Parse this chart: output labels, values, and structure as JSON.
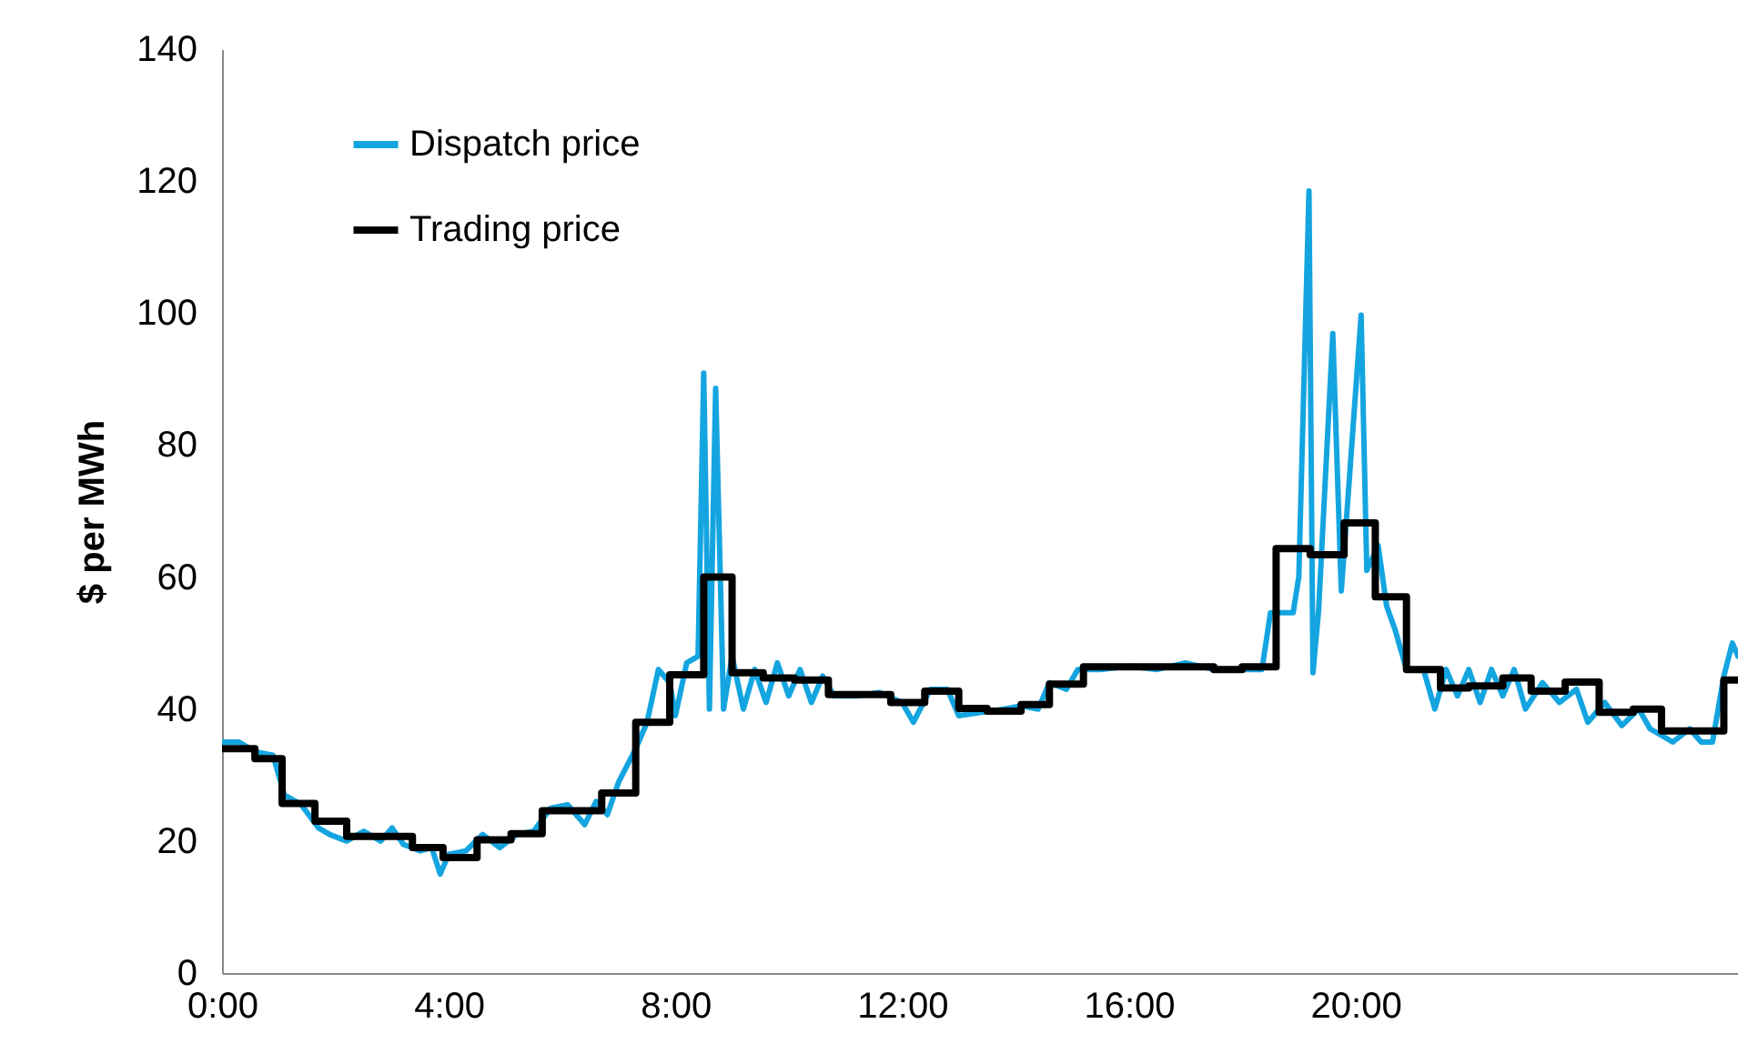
{
  "chart_data": {
    "type": "line",
    "ylabel": "$ per MWh",
    "xlim": [
      0,
      26.75
    ],
    "xticks": [
      {
        "value": 0,
        "label": "0:00"
      },
      {
        "value": 4,
        "label": "4:00"
      },
      {
        "value": 8,
        "label": "8:00"
      },
      {
        "value": 12,
        "label": "12:00"
      },
      {
        "value": 16,
        "label": "16:00"
      },
      {
        "value": 20,
        "label": "20:00"
      }
    ],
    "ylim": [
      0,
      140
    ],
    "yticks": [
      0,
      20,
      40,
      60,
      80,
      100,
      120,
      140
    ],
    "grid": false,
    "legend": "top left",
    "marker": "none",
    "series": [
      {
        "name": "Dispatch price",
        "color": "#14a5e0",
        "x": [
          0,
          0.3,
          0.6,
          0.9,
          1.1,
          1.4,
          1.7,
          1.9,
          2.2,
          2.5,
          2.8,
          3.0,
          3.2,
          3.5,
          3.7,
          3.85,
          4.0,
          4.3,
          4.6,
          4.9,
          5.2,
          5.5,
          5.8,
          6.1,
          6.4,
          6.6,
          6.8,
          7.0,
          7.3,
          7.5,
          7.7,
          7.9,
          8.0,
          8.2,
          8.4,
          8.5,
          8.6,
          8.71,
          8.85,
          9.0,
          9.2,
          9.4,
          9.6,
          9.8,
          10.0,
          10.2,
          10.4,
          10.6,
          10.8,
          11.2,
          11.6,
          12.0,
          12.2,
          12.5,
          12.8,
          13.0,
          13.4,
          13.8,
          14.1,
          14.4,
          14.6,
          14.9,
          15.1,
          15.5,
          16.0,
          16.5,
          17.0,
          17.5,
          18.0,
          18.35,
          18.5,
          18.9,
          19.0,
          19.18,
          19.25,
          19.35,
          19.6,
          19.75,
          20.1,
          20.2,
          20.4,
          20.55,
          20.7,
          20.9,
          21.2,
          21.4,
          21.6,
          21.8,
          22.0,
          22.2,
          22.4,
          22.6,
          22.8,
          23.0,
          23.3,
          23.6,
          23.9,
          24.1,
          24.4,
          24.7,
          25.0,
          25.2,
          25.6,
          25.9,
          26.1,
          26.3,
          26.5,
          26.65,
          26.75
        ],
        "values": [
          35,
          35,
          33.5,
          33,
          27,
          25.5,
          22,
          21,
          20,
          21.5,
          20,
          22,
          19.5,
          18.5,
          19,
          15,
          18,
          18.5,
          21,
          19,
          21,
          21.5,
          25,
          25.5,
          22.5,
          26,
          24,
          29,
          34,
          38,
          46,
          44,
          39,
          47,
          48,
          90.9,
          40,
          88.6,
          40,
          48,
          40,
          46,
          41,
          47,
          42,
          46,
          41,
          45,
          42,
          42,
          42.5,
          41,
          38,
          43,
          43,
          39,
          39.5,
          40,
          40.5,
          40,
          44,
          43,
          46,
          46,
          46.5,
          46,
          47,
          46,
          46,
          46,
          54.6,
          54.6,
          60,
          118.5,
          45.5,
          55,
          96.9,
          57.9,
          99.7,
          61,
          64.8,
          55.6,
          52,
          46,
          46,
          40,
          46,
          42,
          46,
          41,
          46,
          42,
          46,
          40,
          44,
          41,
          43,
          38,
          41,
          37.5,
          40,
          37,
          35,
          37,
          35,
          35,
          45,
          50,
          48
        ]
      },
      {
        "name": "Trading price",
        "type": "step",
        "color": "#000000",
        "x": [
          0,
          0.58,
          1.06,
          1.64,
          2.2,
          3.36,
          3.9,
          4.5,
          5.1,
          5.65,
          6.7,
          7.3,
          7.9,
          8.5,
          9.0,
          9.55,
          10.1,
          10.7,
          11.8,
          12.4,
          13.0,
          13.5,
          14.1,
          14.6,
          15.2,
          17.5,
          18.0,
          18.6,
          19.2,
          19.8,
          20.35,
          20.9,
          21.5,
          22.0,
          22.6,
          23.1,
          23.7,
          24.3,
          24.9,
          25.4,
          26.5,
          26.75
        ],
        "values": [
          34,
          32.5,
          25.7,
          23,
          20.7,
          19,
          17.5,
          20.2,
          21.1,
          24.6,
          27.3,
          38,
          45.2,
          60,
          45.5,
          44.7,
          44.4,
          42.2,
          41,
          42.7,
          40.1,
          39.7,
          40.7,
          43.8,
          46.4,
          46,
          46.4,
          64.3,
          63.4,
          68.2,
          57,
          46,
          43.2,
          43.5,
          44.7,
          42.7,
          44.1,
          39.5,
          40,
          36.7,
          44.4,
          44.4
        ]
      }
    ]
  }
}
